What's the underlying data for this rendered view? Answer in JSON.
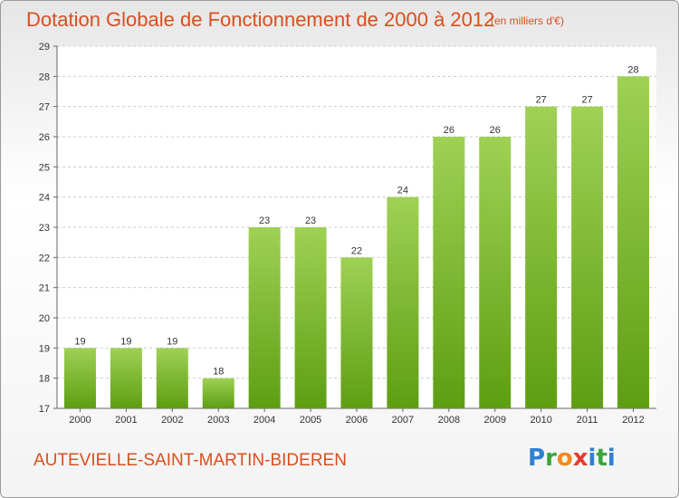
{
  "header": {
    "title": "Dotation Globale de Fonctionnement de 2000 à 2012",
    "unit": "(en milliers d'€)"
  },
  "footer": {
    "town": "AUTEVIELLE-SAINT-MARTIN-BIDEREN",
    "logo": [
      "P",
      "r",
      "o",
      "x",
      "i",
      "t",
      "i"
    ]
  },
  "colors": {
    "bar_top": "#9fd154",
    "bar_bottom": "#5e9e12",
    "title": "#d94f1e",
    "grid": "#cccccc"
  },
  "chart_data": {
    "type": "bar",
    "title": "Dotation Globale de Fonctionnement de 2000 à 2012",
    "subtitle": "(en milliers d'€)",
    "categories": [
      "2000",
      "2001",
      "2002",
      "2003",
      "2004",
      "2005",
      "2006",
      "2007",
      "2008",
      "2009",
      "2010",
      "2011",
      "2012"
    ],
    "values": [
      19,
      19,
      19,
      18,
      23,
      23,
      22,
      24,
      26,
      26,
      27,
      27,
      28
    ],
    "ylim": [
      17,
      29
    ],
    "yticks": [
      17,
      18,
      19,
      20,
      21,
      22,
      23,
      24,
      25,
      26,
      27,
      28,
      29
    ],
    "grid": true,
    "data_labels": true,
    "xlabel": "",
    "ylabel": ""
  }
}
